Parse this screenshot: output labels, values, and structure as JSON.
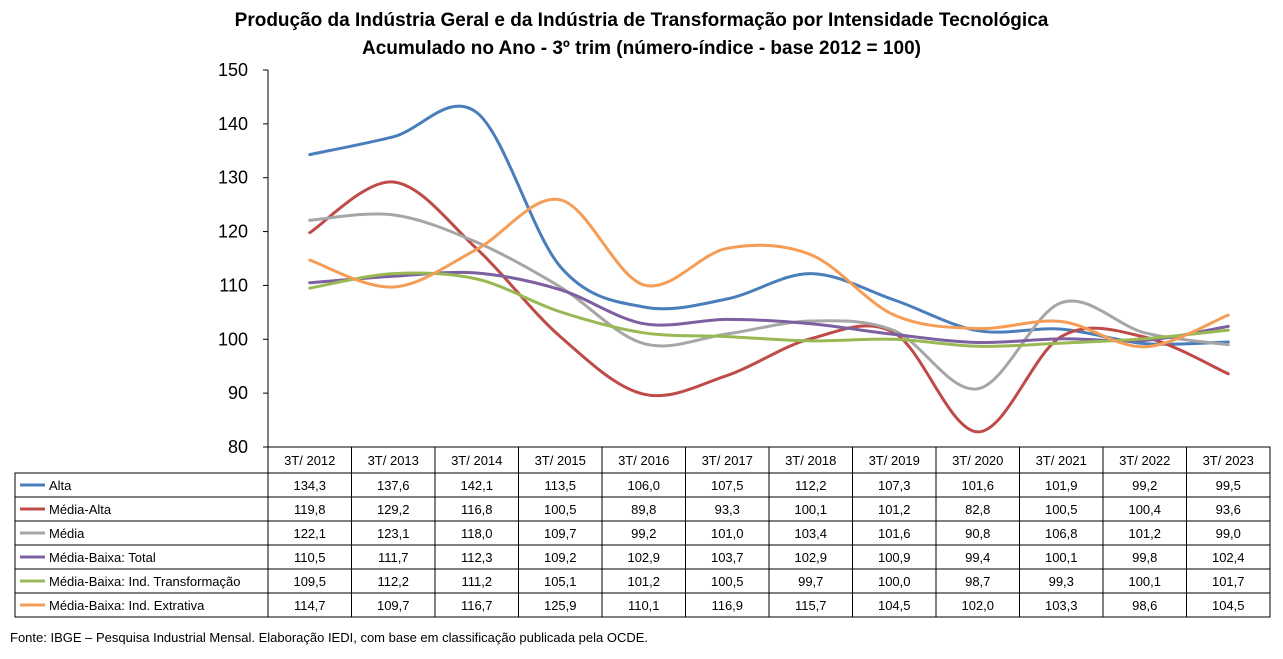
{
  "chart_data": {
    "type": "line",
    "title": "Produção da Indústria Geral e da Indústria de Transformação por Intensidade Tecnológica",
    "subtitle": "Acumulado no Ano - 3º trim (número-índice - base 2012 = 100)",
    "categories": [
      "3T/ 2012",
      "3T/ 2013",
      "3T/ 2014",
      "3T/ 2015",
      "3T/ 2016",
      "3T/ 2017",
      "3T/ 2018",
      "3T/ 2019",
      "3T/ 2020",
      "3T/ 2021",
      "3T/ 2022",
      "3T/ 2023"
    ],
    "ylim": [
      80,
      150
    ],
    "yticks": [
      80,
      90,
      100,
      110,
      120,
      130,
      140,
      150
    ],
    "grid": false,
    "legend": "data-table",
    "series": [
      {
        "name": "Alta",
        "color": "#4a7ebb",
        "values": [
          134.3,
          137.6,
          142.1,
          113.5,
          106.0,
          107.5,
          112.2,
          107.3,
          101.6,
          101.9,
          99.2,
          99.5
        ],
        "labels": [
          "134,3",
          "137,6",
          "142,1",
          "113,5",
          "106,0",
          "107,5",
          "112,2",
          "107,3",
          "101,6",
          "101,9",
          "99,2",
          "99,5"
        ]
      },
      {
        "name": "Média-Alta",
        "color": "#be4b48",
        "values": [
          119.8,
          129.2,
          116.8,
          100.5,
          89.8,
          93.3,
          100.1,
          101.2,
          82.8,
          100.5,
          100.4,
          93.6
        ],
        "labels": [
          "119,8",
          "129,2",
          "116,8",
          "100,5",
          "89,8",
          "93,3",
          "100,1",
          "101,2",
          "82,8",
          "100,5",
          "100,4",
          "93,6"
        ]
      },
      {
        "name": "Média",
        "color": "#a6a6a6",
        "values": [
          122.1,
          123.1,
          118.0,
          109.7,
          99.2,
          101.0,
          103.4,
          101.6,
          90.8,
          106.8,
          101.2,
          99.0
        ],
        "labels": [
          "122,1",
          "123,1",
          "118,0",
          "109,7",
          "99,2",
          "101,0",
          "103,4",
          "101,6",
          "90,8",
          "106,8",
          "101,2",
          "99,0"
        ]
      },
      {
        "name": "Média-Baixa: Total",
        "color": "#7d60a0",
        "values": [
          110.5,
          111.7,
          112.3,
          109.2,
          102.9,
          103.7,
          102.9,
          100.9,
          99.4,
          100.1,
          99.8,
          102.4
        ],
        "labels": [
          "110,5",
          "111,7",
          "112,3",
          "109,2",
          "102,9",
          "103,7",
          "102,9",
          "100,9",
          "99,4",
          "100,1",
          "99,8",
          "102,4"
        ]
      },
      {
        "name": "Média-Baixa: Ind. Transformação",
        "color": "#98b954",
        "values": [
          109.5,
          112.2,
          111.2,
          105.1,
          101.2,
          100.5,
          99.7,
          100.0,
          98.7,
          99.3,
          100.1,
          101.7
        ],
        "labels": [
          "109,5",
          "112,2",
          "111,2",
          "105,1",
          "101,2",
          "100,5",
          "99,7",
          "100,0",
          "98,7",
          "99,3",
          "100,1",
          "101,7"
        ]
      },
      {
        "name": "Média-Baixa: Ind. Extrativa",
        "color": "#f59d56",
        "values": [
          114.7,
          109.7,
          116.7,
          125.9,
          110.1,
          116.9,
          115.7,
          104.5,
          102.0,
          103.3,
          98.6,
          104.5
        ],
        "labels": [
          "114,7",
          "109,7",
          "116,7",
          "125,9",
          "110,1",
          "116,9",
          "115,7",
          "104,5",
          "102,0",
          "103,3",
          "98,6",
          "104,5"
        ]
      }
    ]
  },
  "source": "Fonte: IBGE – Pesquisa Industrial Mensal. Elaboração IEDI, com base em classificação publicada pela OCDE."
}
